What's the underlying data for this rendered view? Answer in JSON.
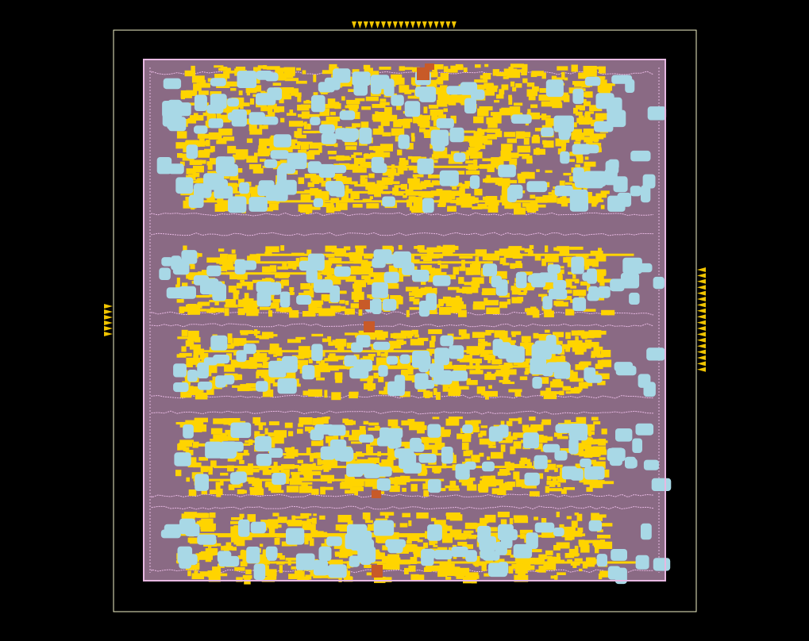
{
  "layout_view": {
    "colors": {
      "background": "#000000",
      "die_outline": "#f2f2c8",
      "core_fill": "#8a6a84",
      "row_boundary": "#e7b8e2",
      "cell_cluster": "#a8d8e6",
      "routing_metal": "#ffd400",
      "macro_block": "#c85a28",
      "io_pin": "#f0c400"
    },
    "icons": {
      "io_pin": "triangle-pin-icon"
    },
    "pin_groups": [
      {
        "side": "top",
        "count": 18
      },
      {
        "side": "left",
        "count": 6
      },
      {
        "side": "right",
        "count": 18
      }
    ]
  }
}
